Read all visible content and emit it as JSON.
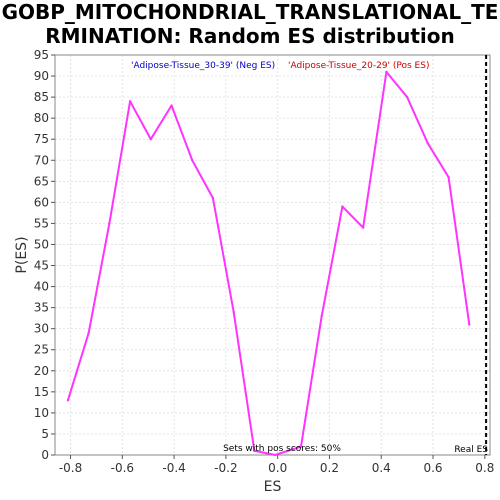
{
  "chart_data": {
    "type": "line",
    "title_line1": "GOBP_MITOCHONDRIAL_TRANSLATIONAL_TE",
    "title_line2": "RMINATION: Random ES distribution",
    "xlabel": "ES",
    "ylabel": "P(ES)",
    "xlim": [
      -0.86,
      0.82
    ],
    "ylim": [
      0,
      95
    ],
    "xticks": [
      -0.8,
      -0.6,
      -0.4,
      -0.2,
      0.0,
      0.2,
      0.4,
      0.6,
      0.8
    ],
    "xtick_labels": [
      "-0.8",
      "-0.6",
      "-0.4",
      "-0.2",
      "0.0",
      "0.2",
      "0.4",
      "0.6",
      "0.8"
    ],
    "yticks": [
      0,
      5,
      10,
      15,
      20,
      25,
      30,
      35,
      40,
      45,
      50,
      55,
      60,
      65,
      70,
      75,
      80,
      85,
      90,
      95
    ],
    "grid": true,
    "series": [
      {
        "color": "#ff33ff",
        "x": [
          -0.81,
          -0.73,
          -0.65,
          -0.57,
          -0.49,
          -0.41,
          -0.33,
          -0.25,
          -0.17,
          -0.09,
          -0.01,
          0.09,
          0.17,
          0.25,
          0.33,
          0.42,
          0.5,
          0.58,
          0.66,
          0.74
        ],
        "y": [
          13,
          29,
          55,
          84,
          75,
          83,
          70,
          61,
          34,
          1,
          0,
          2,
          33,
          59,
          54,
          91,
          85,
          74,
          66,
          31
        ]
      }
    ],
    "legend_neg": "'Adipose-Tissue_30-39' (Neg ES)",
    "legend_pos": "'Adipose-Tissue_20-29' (Pos ES)",
    "legend_neg_color": "#0000cc",
    "legend_pos_color": "#cc0000",
    "annotation_pos_scores": "Sets with pos scores: 50%",
    "real_es_label": "Real ES",
    "real_es_value": 0.805
  }
}
